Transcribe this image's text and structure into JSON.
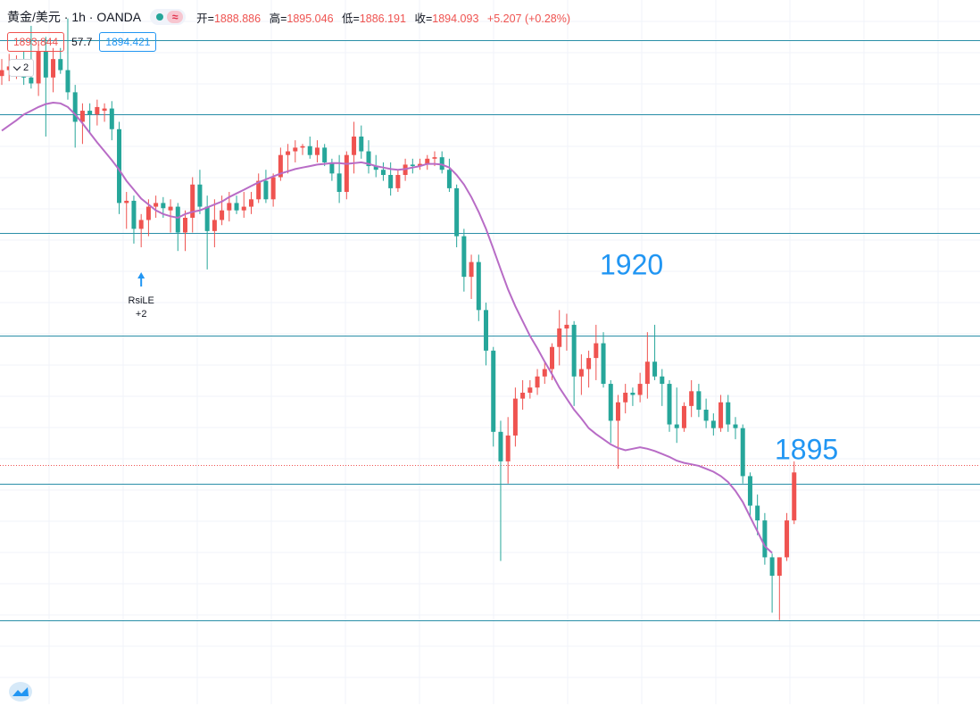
{
  "header": {
    "symbol": "黄金/美元 · 1h · OANDA",
    "open_label": "开=",
    "open": "1888.886",
    "high_label": "高=",
    "high": "1895.046",
    "low_label": "低=",
    "low": "1886.191",
    "close_label": "收=",
    "close": "1894.093",
    "change": "+5.207 (+0.28%)",
    "status_icon": "dot-icon",
    "replay_icon": "wave-icon"
  },
  "indicator": {
    "value_a": "1893.844",
    "value_b": "57.7",
    "value_c": "1894.421"
  },
  "collapse": {
    "count": "2"
  },
  "colors": {
    "up": "#ef5350",
    "down": "#26a69a",
    "ma": "#b86cc6",
    "hline": "#2a8fa8",
    "label": "#2196f3"
  },
  "annotations": {
    "level_1920": "1920",
    "level_1895": "1895",
    "signal_name": "RsiLE",
    "signal_value": "+2"
  },
  "chart_data": {
    "type": "candlestick",
    "ylim": [
      1860.1,
      1955.5
    ],
    "price_lines": [
      1950,
      1940,
      1924,
      1910,
      1890,
      1871.5
    ],
    "annotated_levels": [
      {
        "text": "1920",
        "price": 1920
      },
      {
        "text": "1895",
        "price": 1895
      }
    ],
    "current_price": 1892.5,
    "signal": {
      "index": 19,
      "text": "RsiLE",
      "value": "+2"
    },
    "candles": [
      [
        1945.2,
        1947.5,
        1944.0,
        1946.0
      ],
      [
        1946.0,
        1948.2,
        1944.5,
        1946.5
      ],
      [
        1946.5,
        1948.0,
        1944.8,
        1947.0
      ],
      [
        1947.0,
        1948.5,
        1944.0,
        1945.0
      ],
      [
        1945.0,
        1952.0,
        1943.5,
        1944.2
      ],
      [
        1944.2,
        1950.0,
        1942.5,
        1948.5
      ],
      [
        1948.5,
        1950.5,
        1937.0,
        1945.0
      ],
      [
        1945.0,
        1949.0,
        1943.0,
        1947.5
      ],
      [
        1947.5,
        1949.0,
        1945.5,
        1946.0
      ],
      [
        1946.0,
        1953.0,
        1942.0,
        1943.0
      ],
      [
        1943.0,
        1944.0,
        1935.5,
        1939.0
      ],
      [
        1939.0,
        1941.5,
        1936.0,
        1940.5
      ],
      [
        1940.5,
        1941.5,
        1937.5,
        1940.0
      ],
      [
        1940.0,
        1942.0,
        1938.5,
        1941.0
      ],
      [
        1940.5,
        1941.5,
        1939.0,
        1940.8
      ],
      [
        1940.8,
        1941.8,
        1936.5,
        1938.0
      ],
      [
        1938.0,
        1939.0,
        1926.5,
        1928.0
      ],
      [
        1928.0,
        1929.5,
        1924.5,
        1928.3
      ],
      [
        1928.3,
        1929.0,
        1922.5,
        1924.5
      ],
      [
        1924.5,
        1926.5,
        1922.0,
        1925.7
      ],
      [
        1925.7,
        1928.5,
        1923.5,
        1927.5
      ],
      [
        1927.5,
        1929.0,
        1926.0,
        1928.0
      ],
      [
        1928.0,
        1928.8,
        1926.0,
        1927.3
      ],
      [
        1927.0,
        1928.5,
        1924.0,
        1927.5
      ],
      [
        1927.5,
        1928.0,
        1921.5,
        1924.0
      ],
      [
        1924.0,
        1927.0,
        1921.5,
        1926.0
      ],
      [
        1926.0,
        1931.5,
        1924.0,
        1930.5
      ],
      [
        1930.5,
        1932.5,
        1926.5,
        1927.5
      ],
      [
        1927.5,
        1929.0,
        1919.0,
        1924.2
      ],
      [
        1924.2,
        1928.5,
        1922.0,
        1925.7
      ],
      [
        1925.7,
        1929.0,
        1925.0,
        1927.0
      ],
      [
        1927.0,
        1929.5,
        1925.5,
        1928.0
      ],
      [
        1928.0,
        1929.0,
        1926.5,
        1927.0
      ],
      [
        1927.0,
        1929.5,
        1926.0,
        1927.5
      ],
      [
        1927.5,
        1929.5,
        1926.5,
        1928.5
      ],
      [
        1928.5,
        1932.0,
        1928.0,
        1931.0
      ],
      [
        1931.0,
        1932.5,
        1928.0,
        1928.5
      ],
      [
        1928.5,
        1932.0,
        1927.5,
        1931.5
      ],
      [
        1931.5,
        1935.5,
        1931.0,
        1934.5
      ],
      [
        1934.5,
        1936.0,
        1932.0,
        1935.0
      ],
      [
        1935.0,
        1936.5,
        1933.5,
        1935.5
      ],
      [
        1935.5,
        1936.0,
        1934.5,
        1935.7
      ],
      [
        1935.7,
        1937.0,
        1934.0,
        1934.5
      ],
      [
        1934.5,
        1936.5,
        1933.5,
        1935.5
      ],
      [
        1935.5,
        1936.0,
        1933.0,
        1933.5
      ],
      [
        1933.5,
        1934.0,
        1931.0,
        1932.0
      ],
      [
        1932.0,
        1934.5,
        1928.0,
        1929.5
      ],
      [
        1929.5,
        1935.0,
        1928.5,
        1934.5
      ],
      [
        1934.5,
        1939.0,
        1932.0,
        1937.0
      ],
      [
        1937.0,
        1938.5,
        1934.0,
        1935.0
      ],
      [
        1935.0,
        1936.5,
        1932.0,
        1933.0
      ],
      [
        1933.0,
        1934.5,
        1931.5,
        1932.5
      ],
      [
        1932.5,
        1933.5,
        1931.0,
        1931.8
      ],
      [
        1931.8,
        1933.5,
        1929.0,
        1930.0
      ],
      [
        1930.0,
        1932.5,
        1929.5,
        1931.8
      ],
      [
        1931.8,
        1934.0,
        1931.0,
        1933.2
      ],
      [
        1933.2,
        1934.0,
        1932.0,
        1933.0
      ],
      [
        1933.0,
        1934.0,
        1932.5,
        1933.3
      ],
      [
        1933.3,
        1934.5,
        1932.5,
        1934.0
      ],
      [
        1934.0,
        1935.0,
        1933.0,
        1934.2
      ],
      [
        1934.2,
        1935.0,
        1932.0,
        1932.5
      ],
      [
        1932.5,
        1934.0,
        1929.5,
        1930.0
      ],
      [
        1930.0,
        1930.5,
        1922.0,
        1923.5
      ],
      [
        1923.5,
        1924.5,
        1916.0,
        1918.0
      ],
      [
        1918.0,
        1921.0,
        1915.0,
        1920.0
      ],
      [
        1920.0,
        1921.0,
        1912.0,
        1913.5
      ],
      [
        1913.5,
        1914.5,
        1906.0,
        1908.0
      ],
      [
        1908.0,
        1908.5,
        1895.0,
        1897.0
      ],
      [
        1897.0,
        1898.5,
        1879.5,
        1893.0
      ],
      [
        1893.0,
        1899.0,
        1890.0,
        1896.5
      ],
      [
        1896.5,
        1903.0,
        1895.0,
        1901.5
      ],
      [
        1901.5,
        1904.0,
        1900.0,
        1902.3
      ],
      [
        1902.3,
        1904.0,
        1901.5,
        1903.0
      ],
      [
        1903.0,
        1905.5,
        1902.0,
        1904.5
      ],
      [
        1904.5,
        1906.5,
        1903.5,
        1905.5
      ],
      [
        1905.5,
        1909.0,
        1904.0,
        1908.5
      ],
      [
        1908.5,
        1913.5,
        1906.0,
        1911.0
      ],
      [
        1911.0,
        1913.0,
        1908.0,
        1911.5
      ],
      [
        1911.5,
        1912.0,
        1900.5,
        1904.5
      ],
      [
        1904.5,
        1907.5,
        1902.0,
        1905.5
      ],
      [
        1905.5,
        1908.0,
        1903.0,
        1907.0
      ],
      [
        1907.0,
        1911.5,
        1904.0,
        1909.0
      ],
      [
        1909.0,
        1910.5,
        1903.0,
        1903.5
      ],
      [
        1903.5,
        1904.0,
        1895.5,
        1898.5
      ],
      [
        1898.5,
        1902.0,
        1892.0,
        1901.0
      ],
      [
        1901.0,
        1903.5,
        1899.5,
        1902.3
      ],
      [
        1902.3,
        1903.0,
        1900.5,
        1902.0
      ],
      [
        1902.0,
        1905.0,
        1901.0,
        1903.5
      ],
      [
        1903.5,
        1910.5,
        1901.5,
        1906.5
      ],
      [
        1906.5,
        1911.5,
        1904.0,
        1904.5
      ],
      [
        1904.5,
        1905.5,
        1900.5,
        1903.5
      ],
      [
        1903.5,
        1904.0,
        1897.0,
        1898.0
      ],
      [
        1898.0,
        1903.0,
        1895.5,
        1897.5
      ],
      [
        1897.5,
        1901.0,
        1897.0,
        1900.5
      ],
      [
        1900.5,
        1904.0,
        1899.0,
        1902.5
      ],
      [
        1902.5,
        1903.5,
        1899.0,
        1900.0
      ],
      [
        1900.0,
        1901.5,
        1897.5,
        1898.5
      ],
      [
        1898.5,
        1899.5,
        1896.5,
        1897.5
      ],
      [
        1897.5,
        1902.0,
        1897.0,
        1901.0
      ],
      [
        1901.0,
        1902.0,
        1897.0,
        1898.0
      ],
      [
        1898.0,
        1899.0,
        1896.0,
        1897.5
      ],
      [
        1897.5,
        1898.0,
        1890.0,
        1891.0
      ],
      [
        1891.0,
        1891.5,
        1885.5,
        1887.0
      ],
      [
        1887.0,
        1888.5,
        1883.0,
        1885.0
      ],
      [
        1885.0,
        1886.0,
        1879.0,
        1880.0
      ],
      [
        1880.0,
        1880.5,
        1872.5,
        1877.5
      ],
      [
        1877.5,
        1880.0,
        1871.5,
        1880.0
      ],
      [
        1880.0,
        1886.0,
        1879.5,
        1885.0
      ],
      [
        1885.0,
        1893.0,
        1884.5,
        1891.5
      ]
    ],
    "ma": [
      1937.8,
      1938.5,
      1939.2,
      1940.0,
      1940.5,
      1941.0,
      1941.4,
      1941.6,
      1941.5,
      1941.0,
      1940.0,
      1938.8,
      1937.5,
      1936.2,
      1935.0,
      1933.8,
      1932.5,
      1931.0,
      1929.8,
      1928.6,
      1927.8,
      1927.0,
      1926.5,
      1926.2,
      1926.0,
      1926.5,
      1926.8,
      1927.0,
      1927.4,
      1927.8,
      1928.2,
      1928.8,
      1929.3,
      1929.8,
      1930.3,
      1930.8,
      1931.2,
      1931.6,
      1932.0,
      1932.3,
      1932.6,
      1932.8,
      1933.0,
      1933.2,
      1933.3,
      1933.4,
      1933.4,
      1933.3,
      1933.4,
      1933.5,
      1933.3,
      1933.0,
      1932.8,
      1932.6,
      1932.5,
      1932.6,
      1932.8,
      1933.0,
      1933.3,
      1933.3,
      1933.2,
      1932.8,
      1931.8,
      1930.5,
      1928.8,
      1926.8,
      1924.5,
      1921.8,
      1919.0,
      1916.3,
      1914.0,
      1912.0,
      1910.0,
      1908.3,
      1906.5,
      1904.8,
      1903.0,
      1901.5,
      1900.0,
      1898.8,
      1897.5,
      1896.7,
      1896.0,
      1895.3,
      1894.8,
      1894.5,
      1894.7,
      1894.9,
      1894.7,
      1894.4,
      1894.0,
      1893.6,
      1893.1,
      1892.8,
      1892.6,
      1892.4,
      1892.0,
      1891.6,
      1891.0,
      1890.2,
      1889.0,
      1887.5,
      1885.5,
      1883.5,
      1881.5,
      1880.6
    ]
  }
}
